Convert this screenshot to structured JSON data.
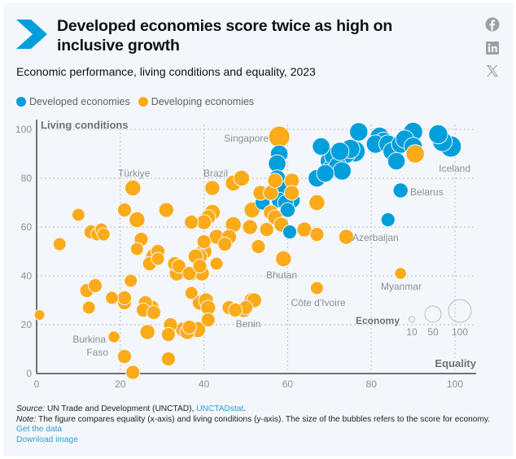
{
  "header": {
    "title": "Developed economies score twice as high on inclusive growth",
    "subtitle": "Economic performance, living conditions and equality, 2023",
    "brand_color": "#009edb",
    "social": [
      {
        "icon": "facebook-icon",
        "label": "Facebook"
      },
      {
        "icon": "linkedin-icon",
        "label": "LinkedIn"
      },
      {
        "icon": "x-icon",
        "label": "X"
      }
    ]
  },
  "legend": {
    "items": [
      {
        "label": "Developed economies",
        "color": "#009edb"
      },
      {
        "label": "Developing economies",
        "color": "#fbab18"
      }
    ]
  },
  "footer": {
    "source_label": "Source:",
    "source_text": " UN Trade and Development (UNCTAD), ",
    "source_link": "UNCTADstat",
    "source_end": ".",
    "note_label": "Note:",
    "note_text": " The figure compares equality (x-axis) and living conditions (y-axis). The size of the bubbles refers to the score for economy.",
    "get_data": "Get the data",
    "download_image": "Download image"
  },
  "chart_data": {
    "type": "scatter",
    "title": "Economic performance, living conditions and equality, 2023",
    "xlabel": "Equality",
    "ylabel": "Living conditions",
    "xlim": [
      0,
      105
    ],
    "ylim": [
      0,
      100
    ],
    "xticks": [
      "0",
      "20",
      "40",
      "60",
      "80",
      "100"
    ],
    "xtick_values": [
      0,
      20,
      40,
      60,
      80,
      100
    ],
    "yticks": [
      "0",
      "20",
      "40",
      "60",
      "80",
      "100"
    ],
    "ytick_values": [
      0,
      20,
      40,
      60,
      80,
      100
    ],
    "grid": true,
    "size_legend": {
      "title": "Economy",
      "values": [
        10,
        50,
        100
      ],
      "labels": [
        "10",
        "50",
        "100"
      ]
    },
    "colors": {
      "developed": "#009edb",
      "developing": "#fbab18"
    },
    "series": [
      {
        "name": "Developed economies",
        "color": "#009edb",
        "points": [
          {
            "x": 58,
            "y": 90,
            "size": 55
          },
          {
            "x": 57.5,
            "y": 86,
            "size": 55
          },
          {
            "x": 57.5,
            "y": 80,
            "size": 50
          },
          {
            "x": 58,
            "y": 76,
            "size": 45
          },
          {
            "x": 54,
            "y": 72,
            "size": 40
          },
          {
            "x": 54,
            "y": 70,
            "size": 40
          },
          {
            "x": 58,
            "y": 71,
            "size": 45
          },
          {
            "x": 59.5,
            "y": 70,
            "size": 45
          },
          {
            "x": 61,
            "y": 71,
            "size": 50
          },
          {
            "x": 60,
            "y": 67,
            "size": 40
          },
          {
            "x": 60.5,
            "y": 58,
            "size": 35
          },
          {
            "x": 68,
            "y": 93,
            "size": 55
          },
          {
            "x": 67,
            "y": 80,
            "size": 55
          },
          {
            "x": 69,
            "y": 82,
            "size": 55
          },
          {
            "x": 70,
            "y": 87,
            "size": 60
          },
          {
            "x": 70.5,
            "y": 84,
            "size": 60
          },
          {
            "x": 71,
            "y": 89,
            "size": 60
          },
          {
            "x": 72,
            "y": 85,
            "size": 60
          },
          {
            "x": 72.5,
            "y": 91,
            "size": 60
          },
          {
            "x": 73,
            "y": 83,
            "size": 60
          },
          {
            "x": 74,
            "y": 90,
            "size": 65
          },
          {
            "x": 75,
            "y": 92,
            "size": 65
          },
          {
            "x": 76,
            "y": 91,
            "size": 80
          },
          {
            "x": 77,
            "y": 99,
            "size": 60
          },
          {
            "x": 81,
            "y": 94,
            "size": 60
          },
          {
            "x": 82,
            "y": 97,
            "size": 65
          },
          {
            "x": 83,
            "y": 95,
            "size": 65
          },
          {
            "x": 84,
            "y": 94,
            "size": 60
          },
          {
            "x": 85,
            "y": 91,
            "size": 60
          },
          {
            "x": 86,
            "y": 87,
            "size": 55
          },
          {
            "x": 87,
            "y": 94,
            "size": 60
          },
          {
            "x": 88,
            "y": 96,
            "size": 60
          },
          {
            "x": 90,
            "y": 99,
            "size": 65
          },
          {
            "x": 90,
            "y": 93,
            "size": 60
          },
          {
            "x": 96,
            "y": 98,
            "size": 65
          },
          {
            "x": 97,
            "y": 95,
            "size": 70
          },
          {
            "x": 99,
            "y": 93,
            "size": 80
          },
          {
            "x": 87,
            "y": 75,
            "size": 40,
            "label": "Belarus"
          },
          {
            "x": 84,
            "y": 63,
            "size": 35
          }
        ]
      },
      {
        "name": "Developing economies",
        "color": "#fbab18",
        "points": [
          {
            "x": 58,
            "y": 97,
            "size": 80,
            "label": "Singapore"
          },
          {
            "x": 90.5,
            "y": 90,
            "size": 60
          },
          {
            "x": 23,
            "y": 76,
            "size": 45,
            "label": "Türkiye"
          },
          {
            "x": 42,
            "y": 76,
            "size": 40,
            "label": "Brazil"
          },
          {
            "x": 47,
            "y": 78,
            "size": 45
          },
          {
            "x": 49,
            "y": 80,
            "size": 45
          },
          {
            "x": 53.5,
            "y": 74,
            "size": 40
          },
          {
            "x": 56,
            "y": 74,
            "size": 40
          },
          {
            "x": 57,
            "y": 79,
            "size": 40
          },
          {
            "x": 61,
            "y": 79,
            "size": 40
          },
          {
            "x": 61,
            "y": 74,
            "size": 40
          },
          {
            "x": 67,
            "y": 70,
            "size": 45
          },
          {
            "x": 51.5,
            "y": 67,
            "size": 45
          },
          {
            "x": 56,
            "y": 66,
            "size": 40
          },
          {
            "x": 57,
            "y": 64,
            "size": 40
          },
          {
            "x": 42,
            "y": 66,
            "size": 45
          },
          {
            "x": 41,
            "y": 64,
            "size": 40
          },
          {
            "x": 40,
            "y": 62,
            "size": 40
          },
          {
            "x": 37,
            "y": 62,
            "size": 35
          },
          {
            "x": 31,
            "y": 67,
            "size": 40
          },
          {
            "x": 24,
            "y": 63,
            "size": 45
          },
          {
            "x": 21,
            "y": 67,
            "size": 35
          },
          {
            "x": 47,
            "y": 61,
            "size": 45
          },
          {
            "x": 43,
            "y": 56,
            "size": 40
          },
          {
            "x": 46,
            "y": 56,
            "size": 40
          },
          {
            "x": 45,
            "y": 53,
            "size": 35
          },
          {
            "x": 40,
            "y": 54,
            "size": 35
          },
          {
            "x": 40,
            "y": 50,
            "size": 45
          },
          {
            "x": 39,
            "y": 48,
            "size": 40
          },
          {
            "x": 43,
            "y": 45,
            "size": 30
          },
          {
            "x": 51,
            "y": 60,
            "size": 40
          },
          {
            "x": 53,
            "y": 52,
            "size": 35
          },
          {
            "x": 55,
            "y": 59,
            "size": 35
          },
          {
            "x": 58.5,
            "y": 61,
            "size": 40
          },
          {
            "x": 59,
            "y": 47,
            "size": 45,
            "label": "Bhutan"
          },
          {
            "x": 64,
            "y": 59,
            "size": 40
          },
          {
            "x": 67,
            "y": 57,
            "size": 35
          },
          {
            "x": 74,
            "y": 56,
            "size": 40,
            "label": "Azerbaijan"
          },
          {
            "x": 87,
            "y": 41,
            "size": 25,
            "label": "Myanmar"
          },
          {
            "x": 67,
            "y": 35,
            "size": 30,
            "label": "Côte d'Ivoire"
          },
          {
            "x": 52,
            "y": 30,
            "size": 40
          },
          {
            "x": 50,
            "y": 27,
            "size": 35
          },
          {
            "x": 46,
            "y": 27,
            "size": 35
          },
          {
            "x": 10,
            "y": 65,
            "size": 30
          },
          {
            "x": 13,
            "y": 58,
            "size": 35
          },
          {
            "x": 14.5,
            "y": 57,
            "size": 30
          },
          {
            "x": 15.5,
            "y": 59,
            "size": 30
          },
          {
            "x": 16,
            "y": 57,
            "size": 30
          },
          {
            "x": 5.5,
            "y": 53,
            "size": 30
          },
          {
            "x": 25,
            "y": 55,
            "size": 35
          },
          {
            "x": 24,
            "y": 51,
            "size": 30
          },
          {
            "x": 28,
            "y": 48,
            "size": 45
          },
          {
            "x": 29,
            "y": 50,
            "size": 35
          },
          {
            "x": 27,
            "y": 45,
            "size": 35
          },
          {
            "x": 29,
            "y": 47,
            "size": 30
          },
          {
            "x": 33,
            "y": 45,
            "size": 35
          },
          {
            "x": 34,
            "y": 44,
            "size": 35
          },
          {
            "x": 33.5,
            "y": 41,
            "size": 40
          },
          {
            "x": 37,
            "y": 41,
            "size": 40
          },
          {
            "x": 38,
            "y": 48,
            "size": 40
          },
          {
            "x": 36.5,
            "y": 41,
            "size": 35
          },
          {
            "x": 39.5,
            "y": 41,
            "size": 40
          },
          {
            "x": 39,
            "y": 44,
            "size": 35
          },
          {
            "x": 22.5,
            "y": 38,
            "size": 30
          },
          {
            "x": 12,
            "y": 34,
            "size": 35
          },
          {
            "x": 14,
            "y": 36,
            "size": 35
          },
          {
            "x": 18,
            "y": 31,
            "size": 30
          },
          {
            "x": 21,
            "y": 29,
            "size": 35
          },
          {
            "x": 21,
            "y": 31,
            "size": 35
          },
          {
            "x": 12.5,
            "y": 27,
            "size": 30
          },
          {
            "x": 26,
            "y": 29,
            "size": 35
          },
          {
            "x": 25.5,
            "y": 26,
            "size": 35
          },
          {
            "x": 27.5,
            "y": 27,
            "size": 40
          },
          {
            "x": 28,
            "y": 25,
            "size": 35
          },
          {
            "x": 37,
            "y": 33,
            "size": 30
          },
          {
            "x": 39,
            "y": 29,
            "size": 40
          },
          {
            "x": 40.5,
            "y": 30,
            "size": 40
          },
          {
            "x": 41,
            "y": 27,
            "size": 40
          },
          {
            "x": 41,
            "y": 22,
            "size": 35
          },
          {
            "x": 47.5,
            "y": 26,
            "size": 35
          },
          {
            "x": 49.5,
            "y": 26,
            "size": 40
          },
          {
            "x": 51.5,
            "y": 30,
            "size": 45,
            "label": "Benin"
          },
          {
            "x": 32,
            "y": 20,
            "size": 35
          },
          {
            "x": 31.5,
            "y": 16,
            "size": 35
          },
          {
            "x": 35,
            "y": 18,
            "size": 40
          },
          {
            "x": 36,
            "y": 17,
            "size": 40
          },
          {
            "x": 36.5,
            "y": 19,
            "size": 35
          },
          {
            "x": 38.5,
            "y": 18,
            "size": 45
          },
          {
            "x": 26.5,
            "y": 17,
            "size": 40
          },
          {
            "x": 31.5,
            "y": 6,
            "size": 35
          },
          {
            "x": 18.5,
            "y": 15,
            "size": 25,
            "label": "Burkina Faso"
          },
          {
            "x": 21,
            "y": 7,
            "size": 35
          },
          {
            "x": 23,
            "y": 0.5,
            "size": 35
          },
          {
            "x": 0.7,
            "y": 24,
            "size": 20
          }
        ]
      }
    ],
    "annotations": [
      {
        "text": "Singapore",
        "anchor": "left-of-point"
      },
      {
        "text": "Türkiye"
      },
      {
        "text": "Brazil"
      },
      {
        "text": "Iceland"
      },
      {
        "text": "Belarus"
      },
      {
        "text": "Azerbaijan"
      },
      {
        "text": "Bhutan"
      },
      {
        "text": "Myanmar"
      },
      {
        "text": "Côte d'Ivoire"
      },
      {
        "text": "Benin"
      },
      {
        "text": "Burkina Faso"
      }
    ]
  }
}
